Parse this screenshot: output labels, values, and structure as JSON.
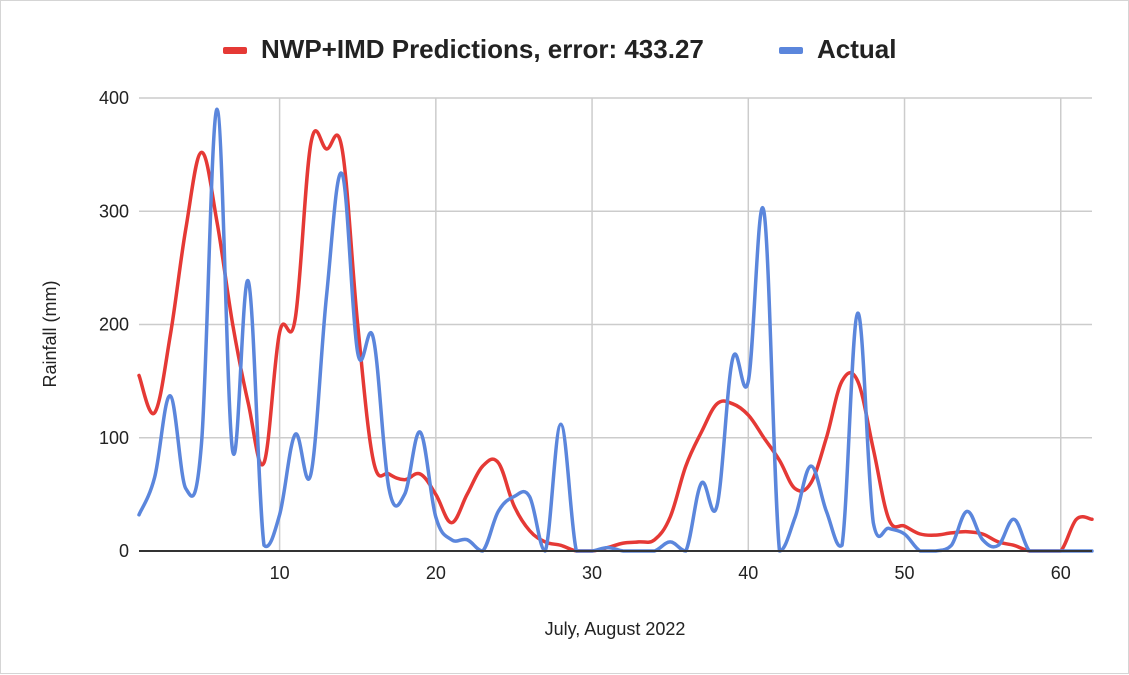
{
  "chart_data": {
    "type": "line",
    "title": "",
    "xlabel": "July, August 2022",
    "ylabel": "Rainfall (mm)",
    "xlim": [
      1,
      62
    ],
    "ylim": [
      0,
      400
    ],
    "x_ticks": [
      "10",
      "20",
      "30",
      "40",
      "50",
      "60"
    ],
    "y_ticks": [
      "0",
      "100",
      "200",
      "300",
      "400"
    ],
    "grid": true,
    "legend_position": "top",
    "series": [
      {
        "name": "NWP+IMD Predictions, error: 433.27",
        "color": "#e53935",
        "x": [
          1,
          2,
          3,
          4,
          5,
          6,
          7,
          8,
          9,
          10,
          11,
          12,
          13,
          14,
          15,
          16,
          17,
          18,
          19,
          20,
          21,
          22,
          23,
          24,
          25,
          26,
          27,
          28,
          29,
          30,
          31,
          32,
          33,
          34,
          35,
          36,
          37,
          38,
          39,
          40,
          41,
          42,
          43,
          44,
          45,
          46,
          47,
          48,
          49,
          50,
          51,
          52,
          53,
          54,
          55,
          56,
          57,
          58,
          59,
          60,
          61,
          62
        ],
        "values": [
          155,
          122,
          190,
          285,
          352,
          290,
          200,
          130,
          78,
          193,
          205,
          360,
          355,
          355,
          200,
          80,
          68,
          63,
          68,
          50,
          25,
          50,
          75,
          78,
          40,
          18,
          8,
          5,
          0,
          0,
          3,
          7,
          8,
          10,
          30,
          75,
          105,
          130,
          130,
          120,
          100,
          80,
          55,
          60,
          100,
          150,
          150,
          90,
          28,
          22,
          15,
          14,
          16,
          17,
          15,
          8,
          5,
          0,
          0,
          0,
          28,
          28
        ]
      },
      {
        "name": "Actual",
        "color": "#5b86dc",
        "x": [
          1,
          2,
          3,
          4,
          5,
          6,
          7,
          8,
          9,
          10,
          11,
          12,
          13,
          14,
          15,
          16,
          17,
          18,
          19,
          20,
          21,
          22,
          23,
          24,
          25,
          26,
          27,
          28,
          29,
          30,
          31,
          32,
          33,
          34,
          35,
          36,
          37,
          38,
          39,
          40,
          41,
          42,
          43,
          44,
          45,
          46,
          47,
          48,
          49,
          50,
          51,
          52,
          53,
          54,
          55,
          56,
          57,
          58,
          59,
          60,
          61,
          62
        ],
        "values": [
          32,
          65,
          137,
          55,
          95,
          390,
          88,
          238,
          5,
          32,
          103,
          68,
          225,
          333,
          175,
          188,
          55,
          50,
          105,
          30,
          10,
          10,
          0,
          35,
          48,
          48,
          0,
          112,
          0,
          0,
          3,
          0,
          0,
          0,
          8,
          0,
          60,
          40,
          170,
          150,
          300,
          0,
          30,
          75,
          35,
          5,
          210,
          25,
          20,
          15,
          0,
          0,
          5,
          35,
          10,
          5,
          28,
          0,
          0,
          0,
          0,
          0
        ]
      }
    ]
  }
}
